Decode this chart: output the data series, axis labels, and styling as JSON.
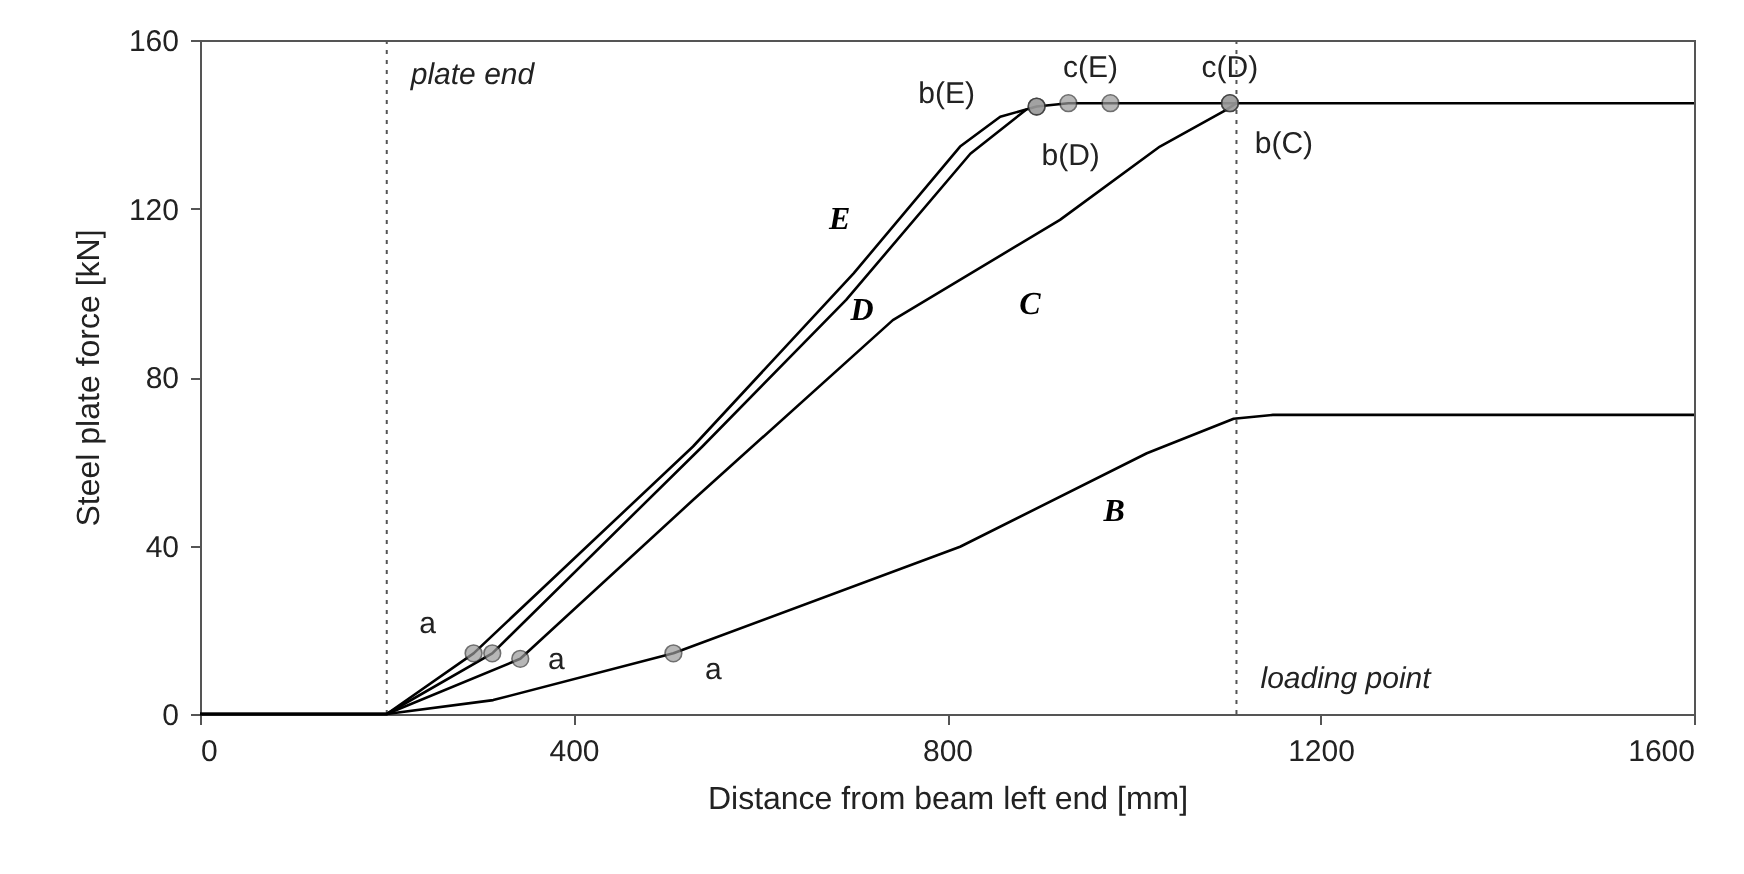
{
  "chart_data": {
    "type": "line",
    "xlabel": "Distance from beam left end [mm]",
    "ylabel": "Steel plate force [kN]",
    "xlim": [
      0,
      1600
    ],
    "xticks": [
      0,
      400,
      800,
      1200,
      1600
    ],
    "ylim": [
      0,
      160
    ],
    "yticks": [
      0,
      40,
      80,
      120,
      160
    ],
    "grid": false,
    "marker": "none",
    "line_style": "solid",
    "series": [
      {
        "name": "B",
        "color": "#000000",
        "x": [
          0,
          200,
          314,
          507,
          814,
          1014,
          1107,
          1149,
          1600
        ],
        "values": [
          0,
          0,
          3.3,
          14.4,
          39.7,
          61.9,
          70.1,
          71,
          71
        ]
      },
      {
        "name": "C",
        "color": "#000000",
        "x": [
          0,
          200,
          343,
          528,
          742,
          921,
          1028,
          1099,
          1110
        ],
        "values": [
          0,
          0,
          13.1,
          50.8,
          93.5,
          117.3,
          134.7,
          143.4,
          145
        ]
      },
      {
        "name": "D",
        "color": "#000000",
        "x": [
          0,
          200,
          313,
          538,
          692,
          825,
          885
        ],
        "values": [
          0,
          0,
          14.4,
          63.5,
          98.3,
          133,
          143.5
        ]
      },
      {
        "name": "E",
        "color": "#000000",
        "x": [
          0,
          200,
          293,
          528,
          700,
          814,
          857,
          896,
          930,
          1600
        ],
        "values": [
          0,
          0,
          14.4,
          63.5,
          104.6,
          134.7,
          141.8,
          144.2,
          145,
          145
        ]
      },
      {
        "type": "scatter",
        "color": "#9a9a9a",
        "marker": "circle",
        "x": [
          293,
          313,
          343,
          507,
          896,
          896,
          930,
          975,
          1103,
          1103
        ],
        "values": [
          14.4,
          14.4,
          13.1,
          14.4,
          144.2,
          144.2,
          145,
          145,
          145,
          145
        ],
        "value_labels": [
          "a",
          null,
          "a",
          "a",
          "b(E)",
          "b(D)",
          "c(E)",
          null,
          "c(D)",
          "b(C)"
        ]
      }
    ],
    "ref_lines": [
      {
        "axis": "x",
        "value": 200,
        "label": "plate end",
        "line_style": "dotted",
        "color": "#555555"
      },
      {
        "axis": "x",
        "value": 1110,
        "label": "loading point",
        "line_style": "dotted",
        "color": "#555555"
      }
    ]
  }
}
